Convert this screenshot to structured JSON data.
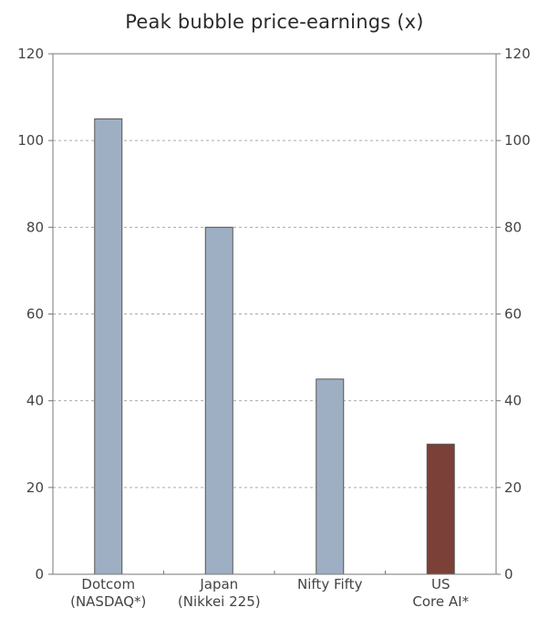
{
  "chart_data": {
    "type": "bar",
    "title": "Peak bubble price-earnings (x)",
    "categories": [
      [
        "Dotcom",
        "(NASDAQ*)"
      ],
      [
        "Japan",
        "(Nikkei 225)"
      ],
      [
        "Nifty Fifty"
      ],
      [
        "US",
        "Core AI*"
      ]
    ],
    "values": [
      105,
      80,
      45,
      30
    ],
    "bar_colors": [
      "#9eafc4",
      "#9eafc4",
      "#9eafc4",
      "#7b4038"
    ],
    "ylim": [
      0,
      120
    ],
    "yticks": [
      "0",
      "20",
      "40",
      "60",
      "80",
      "100",
      "120"
    ],
    "right_axis": true,
    "grid": true,
    "xlabel": "",
    "ylabel": ""
  }
}
